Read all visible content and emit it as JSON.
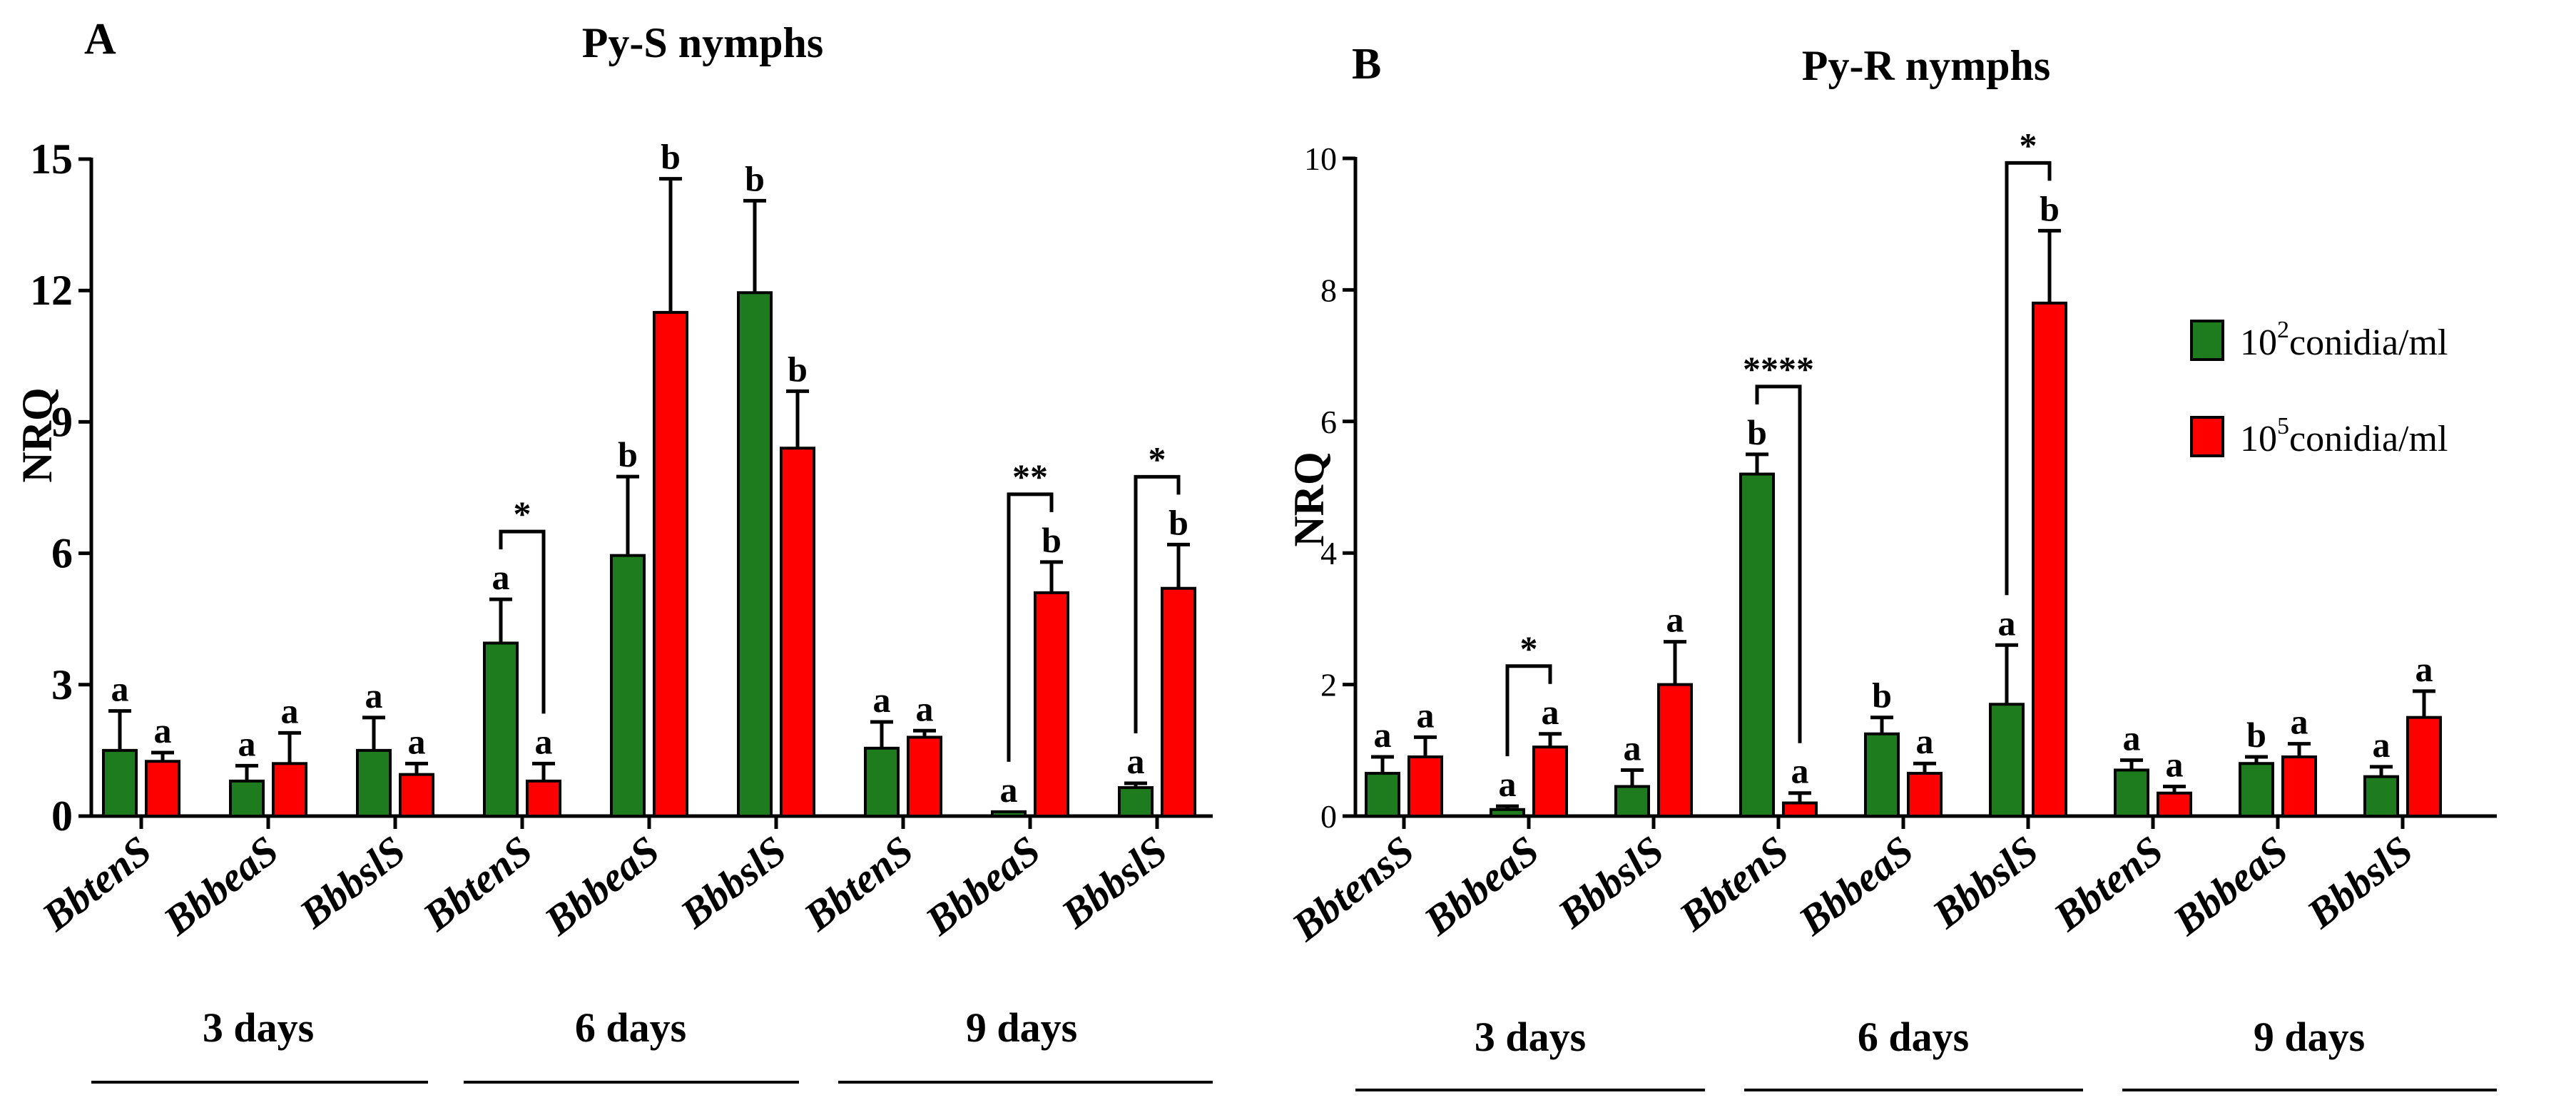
{
  "colors": {
    "green": "#1e7b1e",
    "red": "#ff0000",
    "axis": "#000000"
  },
  "legend": {
    "items": [
      {
        "base": "10",
        "exp": "2",
        "unit": "conidia/ml",
        "color": "#1e7b1e"
      },
      {
        "base": "10",
        "exp": "5",
        "unit": "conidia/ml",
        "color": "#ff0000"
      }
    ]
  },
  "chart_data": [
    {
      "type": "bar",
      "panel": "A",
      "title": "Py-S nymphs",
      "ylabel": "NRQ",
      "ylim": [
        0,
        15
      ],
      "yticks": [
        "0",
        "3",
        "6",
        "9",
        "12",
        "15"
      ],
      "categories": [
        "BbtenS",
        "BbbeaS",
        "BbbslS",
        "BbtenS",
        "BbbeaS",
        "BbbslS",
        "BbtenS",
        "BbbeaS",
        "BbbslS"
      ],
      "groups": [
        "3 days",
        "6 days",
        "9 days"
      ],
      "series": [
        {
          "name": "10^2 conidia/ml",
          "values": [
            1.5,
            0.8,
            1.5,
            3.95,
            5.95,
            11.95,
            1.55,
            0.1,
            0.65
          ],
          "errors": [
            0.9,
            0.35,
            0.75,
            1.0,
            1.8,
            2.1,
            0.6,
            0.0,
            0.1
          ],
          "letters": [
            "a",
            "a",
            "a",
            "a",
            "b",
            "b",
            "a",
            "a",
            "a"
          ]
        },
        {
          "name": "10^5 conidia/ml",
          "values": [
            1.25,
            1.2,
            0.95,
            0.8,
            11.5,
            8.4,
            1.8,
            5.1,
            5.2
          ],
          "errors": [
            0.2,
            0.7,
            0.25,
            0.4,
            3.05,
            1.3,
            0.15,
            0.7,
            1.0
          ],
          "letters": [
            "a",
            "a",
            "a",
            "a",
            "b",
            "b",
            "a",
            "b",
            "b"
          ]
        }
      ],
      "significance": [
        {
          "category": 3,
          "label": "*"
        },
        {
          "category": 7,
          "label": "**"
        },
        {
          "category": 8,
          "label": "*"
        }
      ]
    },
    {
      "type": "bar",
      "panel": "B",
      "title": "Py-R nymphs",
      "ylabel": "NRQ",
      "ylim": [
        0,
        10
      ],
      "yticks": [
        "0",
        "2",
        "4",
        "6",
        "8",
        "10"
      ],
      "categories": [
        "BbtensS",
        "BbbeaS",
        "BbbslS",
        "BbtenS",
        "BbbeaS",
        "BbbslS",
        "BbtenS",
        "BbbeaS",
        "BbbslS"
      ],
      "groups": [
        "3 days",
        "6 days",
        "9 days"
      ],
      "series": [
        {
          "name": "10^2 conidia/ml",
          "values": [
            0.65,
            0.1,
            0.45,
            5.2,
            1.25,
            1.7,
            0.7,
            0.8,
            0.6
          ],
          "errors": [
            0.25,
            0.05,
            0.25,
            0.3,
            0.25,
            0.9,
            0.15,
            0.1,
            0.15
          ],
          "letters": [
            "a",
            "a",
            "a",
            "b",
            "b",
            "a",
            "a",
            "b",
            "a"
          ]
        },
        {
          "name": "10^5 conidia/ml",
          "values": [
            0.9,
            1.05,
            2.0,
            0.2,
            0.65,
            7.8,
            0.35,
            0.9,
            1.5
          ],
          "errors": [
            0.3,
            0.2,
            0.65,
            0.15,
            0.15,
            1.1,
            0.1,
            0.2,
            0.4
          ],
          "letters": [
            "a",
            "a",
            "a",
            "a",
            "a",
            "b",
            "a",
            "a",
            "a"
          ]
        }
      ],
      "significance": [
        {
          "category": 1,
          "label": "*"
        },
        {
          "category": 3,
          "label": "****"
        },
        {
          "category": 5,
          "label": "*"
        }
      ]
    }
  ]
}
